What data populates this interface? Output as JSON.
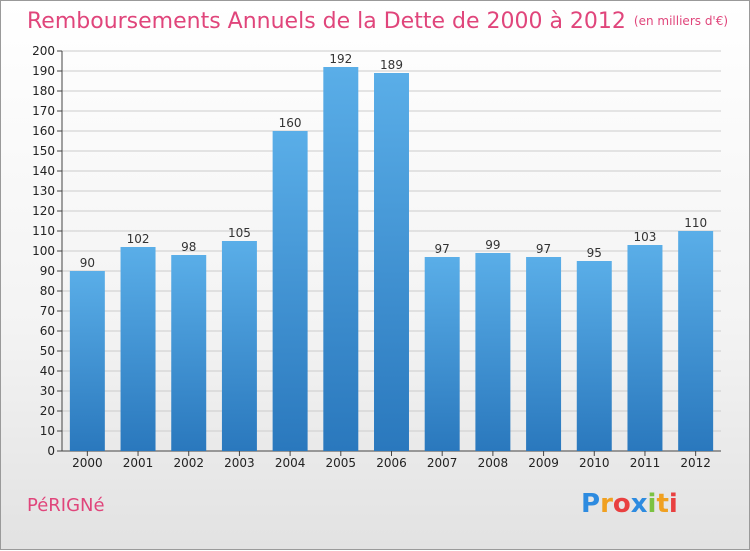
{
  "title": "Remboursements Annuels de la Dette de 2000 à 2012",
  "unit": "(en milliers d'€)",
  "town": "PéRIGNé",
  "logo": {
    "text": "Proxiti",
    "letters": [
      {
        "ch": "P",
        "color": "#2d8be0"
      },
      {
        "ch": "r",
        "color": "#f0a020"
      },
      {
        "ch": "o",
        "color": "#e94040"
      },
      {
        "ch": "x",
        "color": "#2d8be0"
      },
      {
        "ch": "i",
        "color": "#7cc242"
      },
      {
        "ch": "t",
        "color": "#f0a020"
      },
      {
        "ch": "i",
        "color": "#e94040"
      }
    ]
  },
  "colors": {
    "title": "#e0457b",
    "bar_top": "#5aaee8",
    "bar_bottom": "#2a78bd",
    "grid": "#cccccc"
  },
  "chart_data": {
    "type": "bar",
    "categories": [
      "2000",
      "2001",
      "2002",
      "2003",
      "2004",
      "2005",
      "2006",
      "2007",
      "2008",
      "2009",
      "2010",
      "2011",
      "2012"
    ],
    "values": [
      90,
      102,
      98,
      105,
      160,
      192,
      189,
      97,
      99,
      97,
      95,
      103,
      110
    ],
    "value_labels": [
      "90",
      "102",
      "98",
      "105",
      "160",
      "192",
      "189",
      "97",
      "99",
      "97",
      "95",
      "103",
      "110"
    ],
    "ylim": [
      0,
      200
    ],
    "yticks": [
      "0",
      "10",
      "20",
      "30",
      "40",
      "50",
      "60",
      "70",
      "80",
      "90",
      "100",
      "110",
      "120",
      "130",
      "140",
      "150",
      "160",
      "170",
      "180",
      "190",
      "200"
    ],
    "grid": true,
    "legend": "none"
  }
}
